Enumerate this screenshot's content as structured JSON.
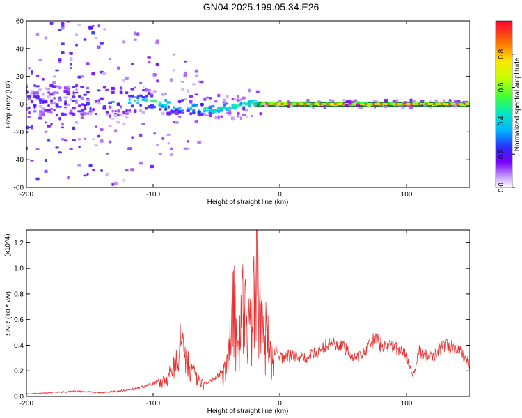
{
  "title": "GN04.2025.199.05.34.E26",
  "colors": {
    "trace": "#e83030",
    "frame": "#000000"
  },
  "chart_data": [
    {
      "type": "heatmap",
      "xlabel": "Height of straight line (km)",
      "ylabel": "Frequency (Hz)",
      "xlim": [
        -200,
        150
      ],
      "ylim": [
        -60,
        60
      ],
      "xticks": [
        -200,
        -100,
        0,
        100
      ],
      "yticks": [
        -60,
        -40,
        -20,
        0,
        20,
        40,
        60
      ],
      "colorbar": {
        "label": "Normalized spectral amplitude",
        "range": [
          0,
          1
        ],
        "ticks": [
          0.0,
          0.2,
          0.4,
          0.6,
          0.8
        ],
        "tick_labels": [
          "0.0",
          "0.2",
          "0.4",
          "0.6",
          "0.8"
        ]
      },
      "ridge": {
        "x": [
          -140,
          -120,
          -100,
          -80,
          -60,
          -50,
          -40,
          -30,
          -20,
          -10,
          0,
          50,
          100,
          150
        ],
        "y": [
          3,
          3,
          1.5,
          -1,
          -4,
          -4,
          -2,
          -1,
          1,
          0.5,
          0,
          0,
          0,
          0
        ]
      }
    },
    {
      "type": "line",
      "xlabel": "Height of straight line (km)",
      "ylabel": "SNR (10 * v/v)",
      "yscale_note": "(x10^4)",
      "xlim": [
        -200,
        150
      ],
      "ylim": [
        0,
        1.3
      ],
      "xticks": [
        -200,
        -100,
        0,
        100
      ],
      "yticks": [
        0.0,
        0.2,
        0.4,
        0.6,
        0.8,
        1.0,
        1.2
      ],
      "ytick_labels": [
        "0.0",
        "0.2",
        "0.4",
        "0.6",
        "0.8",
        "1.0",
        "1.2"
      ],
      "series": [
        {
          "x": [
            -200,
            -180,
            -160,
            -140,
            -120,
            -110,
            -100,
            -90,
            -85,
            -80,
            -78,
            -75,
            -72,
            -70,
            -65,
            -60,
            -55,
            -50,
            -45,
            -42,
            -40,
            -38,
            -36,
            -34,
            -32,
            -30,
            -28,
            -26,
            -24,
            -22,
            -20,
            -18,
            -16,
            -14,
            -12,
            -10,
            -8,
            -5,
            0,
            10,
            20,
            30,
            40,
            50,
            60,
            70,
            75,
            80,
            90,
            100,
            105,
            110,
            120,
            130,
            140,
            150
          ],
          "values": [
            0.02,
            0.03,
            0.04,
            0.03,
            0.05,
            0.07,
            0.1,
            0.15,
            0.25,
            0.35,
            0.55,
            0.42,
            0.3,
            0.25,
            0.15,
            0.1,
            0.12,
            0.15,
            0.2,
            0.35,
            0.55,
            0.75,
            1.05,
            0.6,
            0.7,
            0.85,
            1.0,
            0.65,
            0.75,
            0.9,
            1.0,
            1.3,
            0.95,
            0.85,
            0.7,
            0.6,
            0.5,
            0.4,
            0.3,
            0.32,
            0.3,
            0.35,
            0.42,
            0.38,
            0.3,
            0.38,
            0.45,
            0.4,
            0.38,
            0.32,
            0.15,
            0.35,
            0.3,
            0.4,
            0.38,
            0.25
          ]
        }
      ]
    }
  ]
}
